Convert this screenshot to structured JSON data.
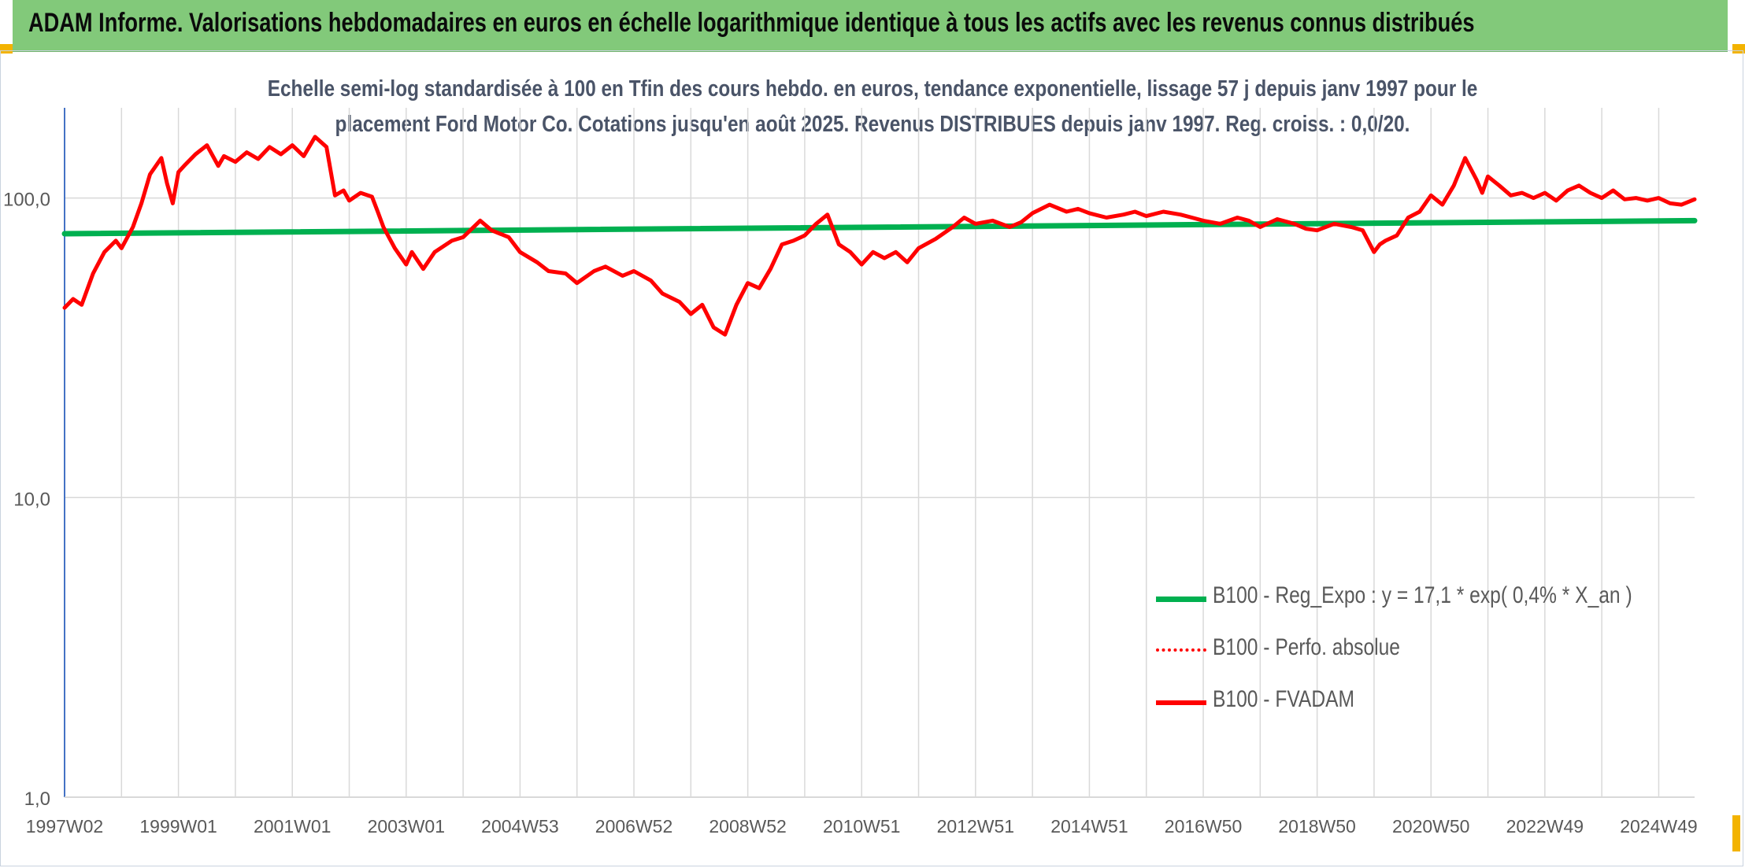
{
  "banner": {
    "title": "ADAM Informe. Valorisations hebdomadaires en euros en échelle logarithmique identique à tous les actifs avec les revenus connus distribués"
  },
  "chart_data": {
    "type": "line",
    "title_line1": "Echelle semi-log standardisée à 100 en Tfin des cours hebdo. en euros, tendance exponentielle, lissage 57 j depuis janv 1997 pour le",
    "title_line2": "placement Ford Motor Co. Cotations jusqu'en août 2025. Revenus DISTRIBUES depuis janv 1997. Reg. croiss. : 0,0/20.",
    "yscale": "log",
    "ylim": [
      1,
      200
    ],
    "xlim": [
      1997.0,
      2025.63
    ],
    "y_tick_labels": [
      {
        "value": 100,
        "label": "100,0"
      },
      {
        "value": 10,
        "label": "10,0"
      },
      {
        "value": 1,
        "label": "1,0"
      }
    ],
    "x_tick_labels": [
      {
        "x": 1997.0,
        "label": "1997W02"
      },
      {
        "x": 1999.0,
        "label": "1999W01"
      },
      {
        "x": 2001.0,
        "label": "2001W01"
      },
      {
        "x": 2003.0,
        "label": "2003W01"
      },
      {
        "x": 2005.0,
        "label": "2004W53"
      },
      {
        "x": 2007.0,
        "label": "2006W52"
      },
      {
        "x": 2009.0,
        "label": "2008W52"
      },
      {
        "x": 2011.0,
        "label": "2010W51"
      },
      {
        "x": 2013.0,
        "label": "2012W51"
      },
      {
        "x": 2015.0,
        "label": "2014W51"
      },
      {
        "x": 2017.0,
        "label": "2016W50"
      },
      {
        "x": 2019.0,
        "label": "2018W50"
      },
      {
        "x": 2021.0,
        "label": "2020W50"
      },
      {
        "x": 2023.0,
        "label": "2022W49"
      },
      {
        "x": 2025.0,
        "label": "2024W49"
      }
    ],
    "grid": true,
    "legend_position": "bottom-right",
    "series": [
      {
        "name": "B100 - Reg_Expo : y = 17,1 * exp( 0,4% *  X_an )",
        "color": "#00b050",
        "style": "solid-thick",
        "x": [
          1997.0,
          2025.63
        ],
        "y": [
          76.0,
          84.0
        ]
      },
      {
        "name": "B100 - Perfo. absolue",
        "color": "#ff0000",
        "style": "dotted",
        "x": [],
        "y": []
      },
      {
        "name": "B100 - FVADAM",
        "color": "#ff0000",
        "style": "solid",
        "x": [
          1997.0,
          1997.15,
          1997.3,
          1997.5,
          1997.7,
          1997.9,
          1998.0,
          1998.2,
          1998.35,
          1998.5,
          1998.7,
          1998.8,
          1998.9,
          1999.0,
          1999.1,
          1999.3,
          1999.5,
          1999.7,
          1999.8,
          2000.0,
          2000.2,
          2000.4,
          2000.6,
          2000.8,
          2001.0,
          2001.2,
          2001.4,
          2001.6,
          2001.75,
          2001.9,
          2002.0,
          2002.2,
          2002.4,
          2002.5,
          2002.6,
          2002.8,
          2003.0,
          2003.1,
          2003.3,
          2003.5,
          2003.8,
          2004.0,
          2004.3,
          2004.5,
          2004.8,
          2005.0,
          2005.3,
          2005.5,
          2005.8,
          2006.0,
          2006.3,
          2006.5,
          2006.8,
          2007.0,
          2007.3,
          2007.5,
          2007.8,
          2008.0,
          2008.2,
          2008.4,
          2008.6,
          2008.8,
          2009.0,
          2009.2,
          2009.4,
          2009.6,
          2009.8,
          2010.0,
          2010.2,
          2010.4,
          2010.6,
          2010.8,
          2011.0,
          2011.2,
          2011.4,
          2011.6,
          2011.8,
          2012.0,
          2012.3,
          2012.6,
          2012.8,
          2013.0,
          2013.3,
          2013.6,
          2013.8,
          2014.0,
          2014.3,
          2014.6,
          2014.8,
          2015.0,
          2015.3,
          2015.6,
          2015.8,
          2016.0,
          2016.3,
          2016.6,
          2016.8,
          2017.0,
          2017.3,
          2017.6,
          2017.8,
          2018.0,
          2018.3,
          2018.6,
          2018.8,
          2019.0,
          2019.3,
          2019.6,
          2019.8,
          2020.0,
          2020.1,
          2020.2,
          2020.4,
          2020.6,
          2020.8,
          2021.0,
          2021.2,
          2021.4,
          2021.6,
          2021.8,
          2021.9,
          2022.0,
          2022.2,
          2022.4,
          2022.6,
          2022.8,
          2023.0,
          2023.2,
          2023.4,
          2023.6,
          2023.8,
          2024.0,
          2024.2,
          2024.4,
          2024.6,
          2024.8,
          2025.0,
          2025.2,
          2025.4,
          2025.63
        ],
        "y": [
          43,
          46,
          44,
          56,
          66,
          72,
          68,
          80,
          96,
          120,
          136,
          112,
          96,
          122,
          128,
          140,
          150,
          128,
          138,
          132,
          142,
          135,
          148,
          140,
          150,
          138,
          160,
          148,
          102,
          106,
          98,
          104,
          101,
          90,
          80,
          68,
          60,
          66,
          58,
          66,
          72,
          74,
          84,
          78,
          74,
          66,
          61,
          57,
          56,
          52,
          57,
          59,
          55,
          57,
          53,
          48,
          45,
          41,
          44,
          37,
          35,
          44,
          52,
          50,
          58,
          70,
          72,
          75,
          82,
          88,
          70,
          66,
          60,
          66,
          63,
          66,
          61,
          68,
          73,
          80,
          86,
          82,
          84,
          80,
          83,
          89,
          95,
          90,
          92,
          89,
          86,
          88,
          90,
          87,
          90,
          88,
          86,
          84,
          82,
          86,
          84,
          80,
          85,
          82,
          79,
          78,
          82,
          80,
          78,
          66,
          70,
          72,
          75,
          86,
          90,
          102,
          95,
          110,
          136,
          115,
          104,
          118,
          110,
          102,
          104,
          100,
          104,
          98,
          106,
          110,
          104,
          100,
          106,
          99,
          100,
          98,
          100,
          96,
          95,
          99
        ]
      }
    ]
  },
  "colors": {
    "banner_bg": "#82c97a",
    "accent_corner": "#f3b300",
    "grid": "#d9d9d9",
    "axis_text": "#595959",
    "title_text": "#4a5468"
  }
}
